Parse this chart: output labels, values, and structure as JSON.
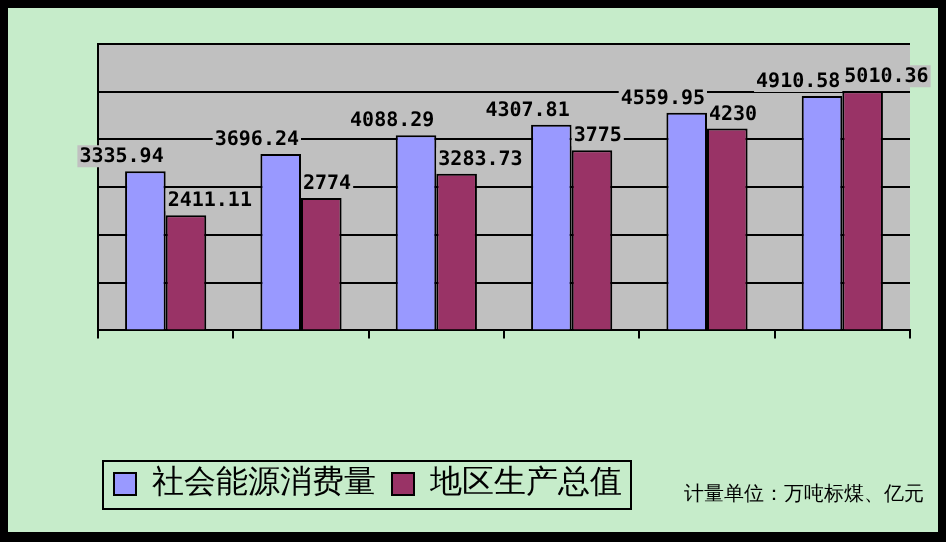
{
  "chart_data": {
    "type": "bar",
    "categories": [
      null,
      null,
      null,
      null,
      null,
      null
    ],
    "series": [
      {
        "name": "社会能源消费量",
        "color": "#9999ff",
        "values": [
          3335.94,
          3696.24,
          4088.29,
          4307.81,
          4559.95,
          4910.58
        ]
      },
      {
        "name": "地区生产总值",
        "color": "#993366",
        "values": [
          2411.11,
          2774,
          3283.73,
          3775,
          4230,
          5010.36
        ]
      }
    ],
    "ylim": [
      0,
      6000
    ],
    "grid": "y",
    "data_labels": true,
    "legend": "bottom",
    "annotations": [
      "计量单位：万吨标煤、亿元"
    ]
  }
}
